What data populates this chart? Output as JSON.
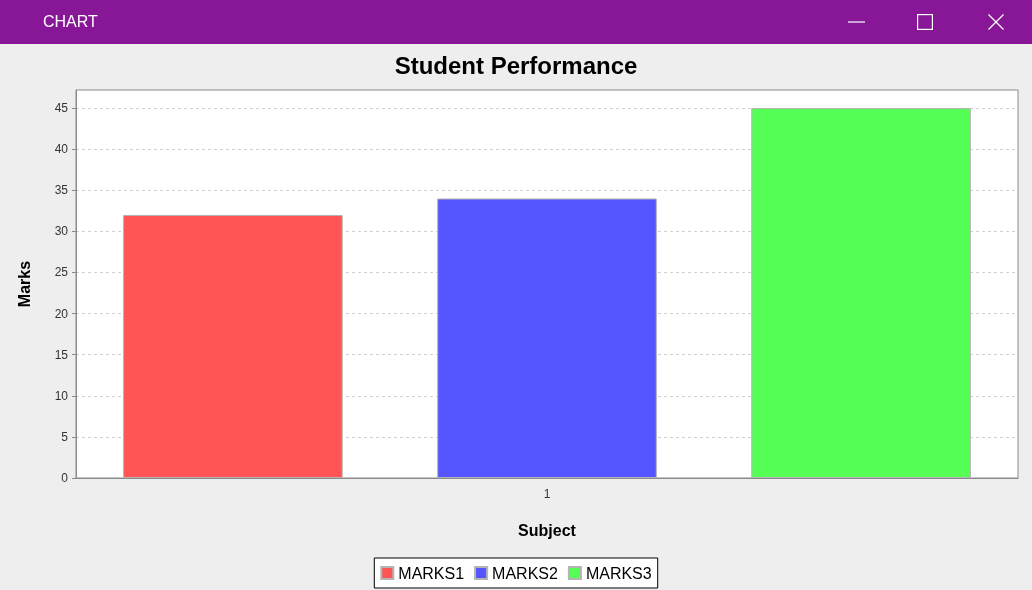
{
  "chart_data": {
    "type": "bar",
    "title": "Student Performance",
    "xlabel": "Subject",
    "ylabel": "Marks",
    "annotations": [
      "CHART"
    ],
    "categories": [
      "1"
    ],
    "series": [
      {
        "name": "MARKS1",
        "color": "#ff5555",
        "values": [
          32
        ]
      },
      {
        "name": "MARKS2",
        "color": "#5555ff",
        "values": [
          34
        ]
      },
      {
        "name": "MARKS3",
        "color": "#55ff55",
        "values": [
          45
        ]
      }
    ],
    "ylim": [
      0,
      47.2
    ],
    "yticks": [
      0,
      5,
      10,
      15,
      20,
      25,
      30,
      35,
      40,
      45
    ],
    "grid": "y",
    "legend": "bottom"
  }
}
